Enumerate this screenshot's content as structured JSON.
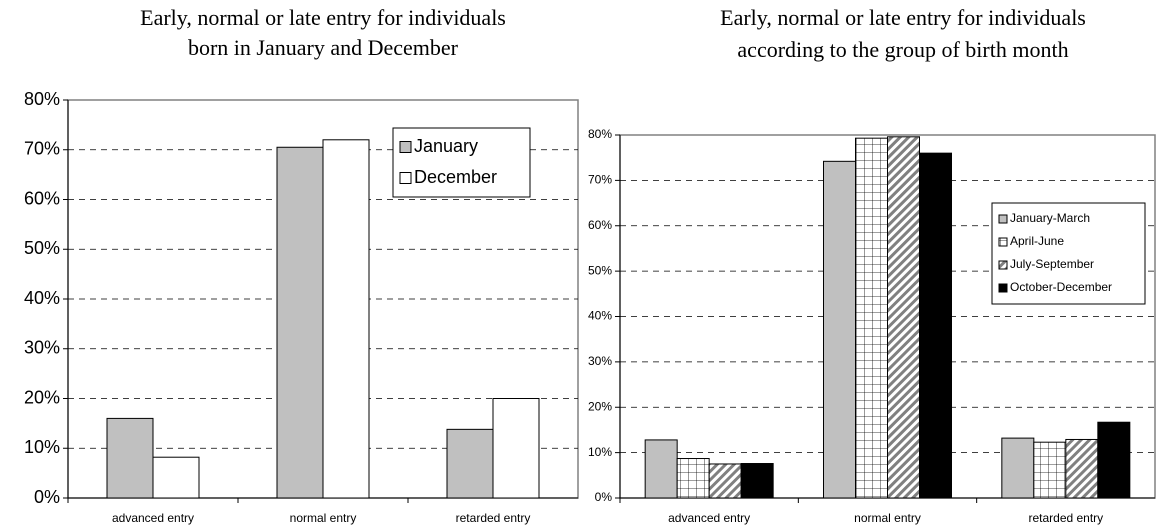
{
  "chart_data": [
    {
      "type": "bar",
      "title": [
        "Early, normal or late entry for individuals",
        "born in January and December"
      ],
      "categories": [
        "advanced entry",
        "normal entry",
        "retarded entry"
      ],
      "series": [
        {
          "name": "January",
          "color": "#c0c0c0",
          "values": [
            16,
            70.5,
            13.8
          ]
        },
        {
          "name": "December",
          "color": "#ffffff",
          "values": [
            8.2,
            72,
            20
          ]
        }
      ],
      "ylim": [
        0,
        80
      ],
      "yticks": [
        {
          "value": 0,
          "label": "0%"
        },
        {
          "value": 10,
          "label": "10%"
        },
        {
          "value": 20,
          "label": "20%"
        },
        {
          "value": 30,
          "label": "30%"
        },
        {
          "value": 40,
          "label": "40%"
        },
        {
          "value": 50,
          "label": "50%"
        },
        {
          "value": 60,
          "label": "60%"
        },
        {
          "value": 70,
          "label": "70%"
        },
        {
          "value": 80,
          "label": "80%"
        }
      ],
      "grid": true,
      "legend": "upper right"
    },
    {
      "type": "bar",
      "title": [
        "Early, normal or late entry for individuals",
        "according to the group of birth month"
      ],
      "categories": [
        "advanced entry",
        "normal entry",
        "retarded entry"
      ],
      "series": [
        {
          "name": "January-March",
          "color": "#c0c0c0",
          "values": [
            12.8,
            74.2,
            13.2
          ]
        },
        {
          "name": "April-June",
          "color": "#ffffff",
          "pattern": "grid",
          "values": [
            8.7,
            79.3,
            12.3
          ]
        },
        {
          "name": "July-September",
          "color": "#808080",
          "pattern": "hatch",
          "values": [
            7.5,
            79.6,
            12.9
          ]
        },
        {
          "name": "October-December",
          "color": "#000000",
          "values": [
            7.6,
            76,
            16.7
          ]
        }
      ],
      "ylim": [
        0,
        80
      ],
      "yticks": [
        {
          "value": 0,
          "label": "0%"
        },
        {
          "value": 10,
          "label": "10%"
        },
        {
          "value": 20,
          "label": "20%"
        },
        {
          "value": 30,
          "label": "30%"
        },
        {
          "value": 40,
          "label": "40%"
        },
        {
          "value": 50,
          "label": "50%"
        },
        {
          "value": 60,
          "label": "60%"
        },
        {
          "value": 70,
          "label": "70%"
        },
        {
          "value": 80,
          "label": "80%"
        }
      ],
      "grid": true,
      "legend": "upper right"
    }
  ]
}
